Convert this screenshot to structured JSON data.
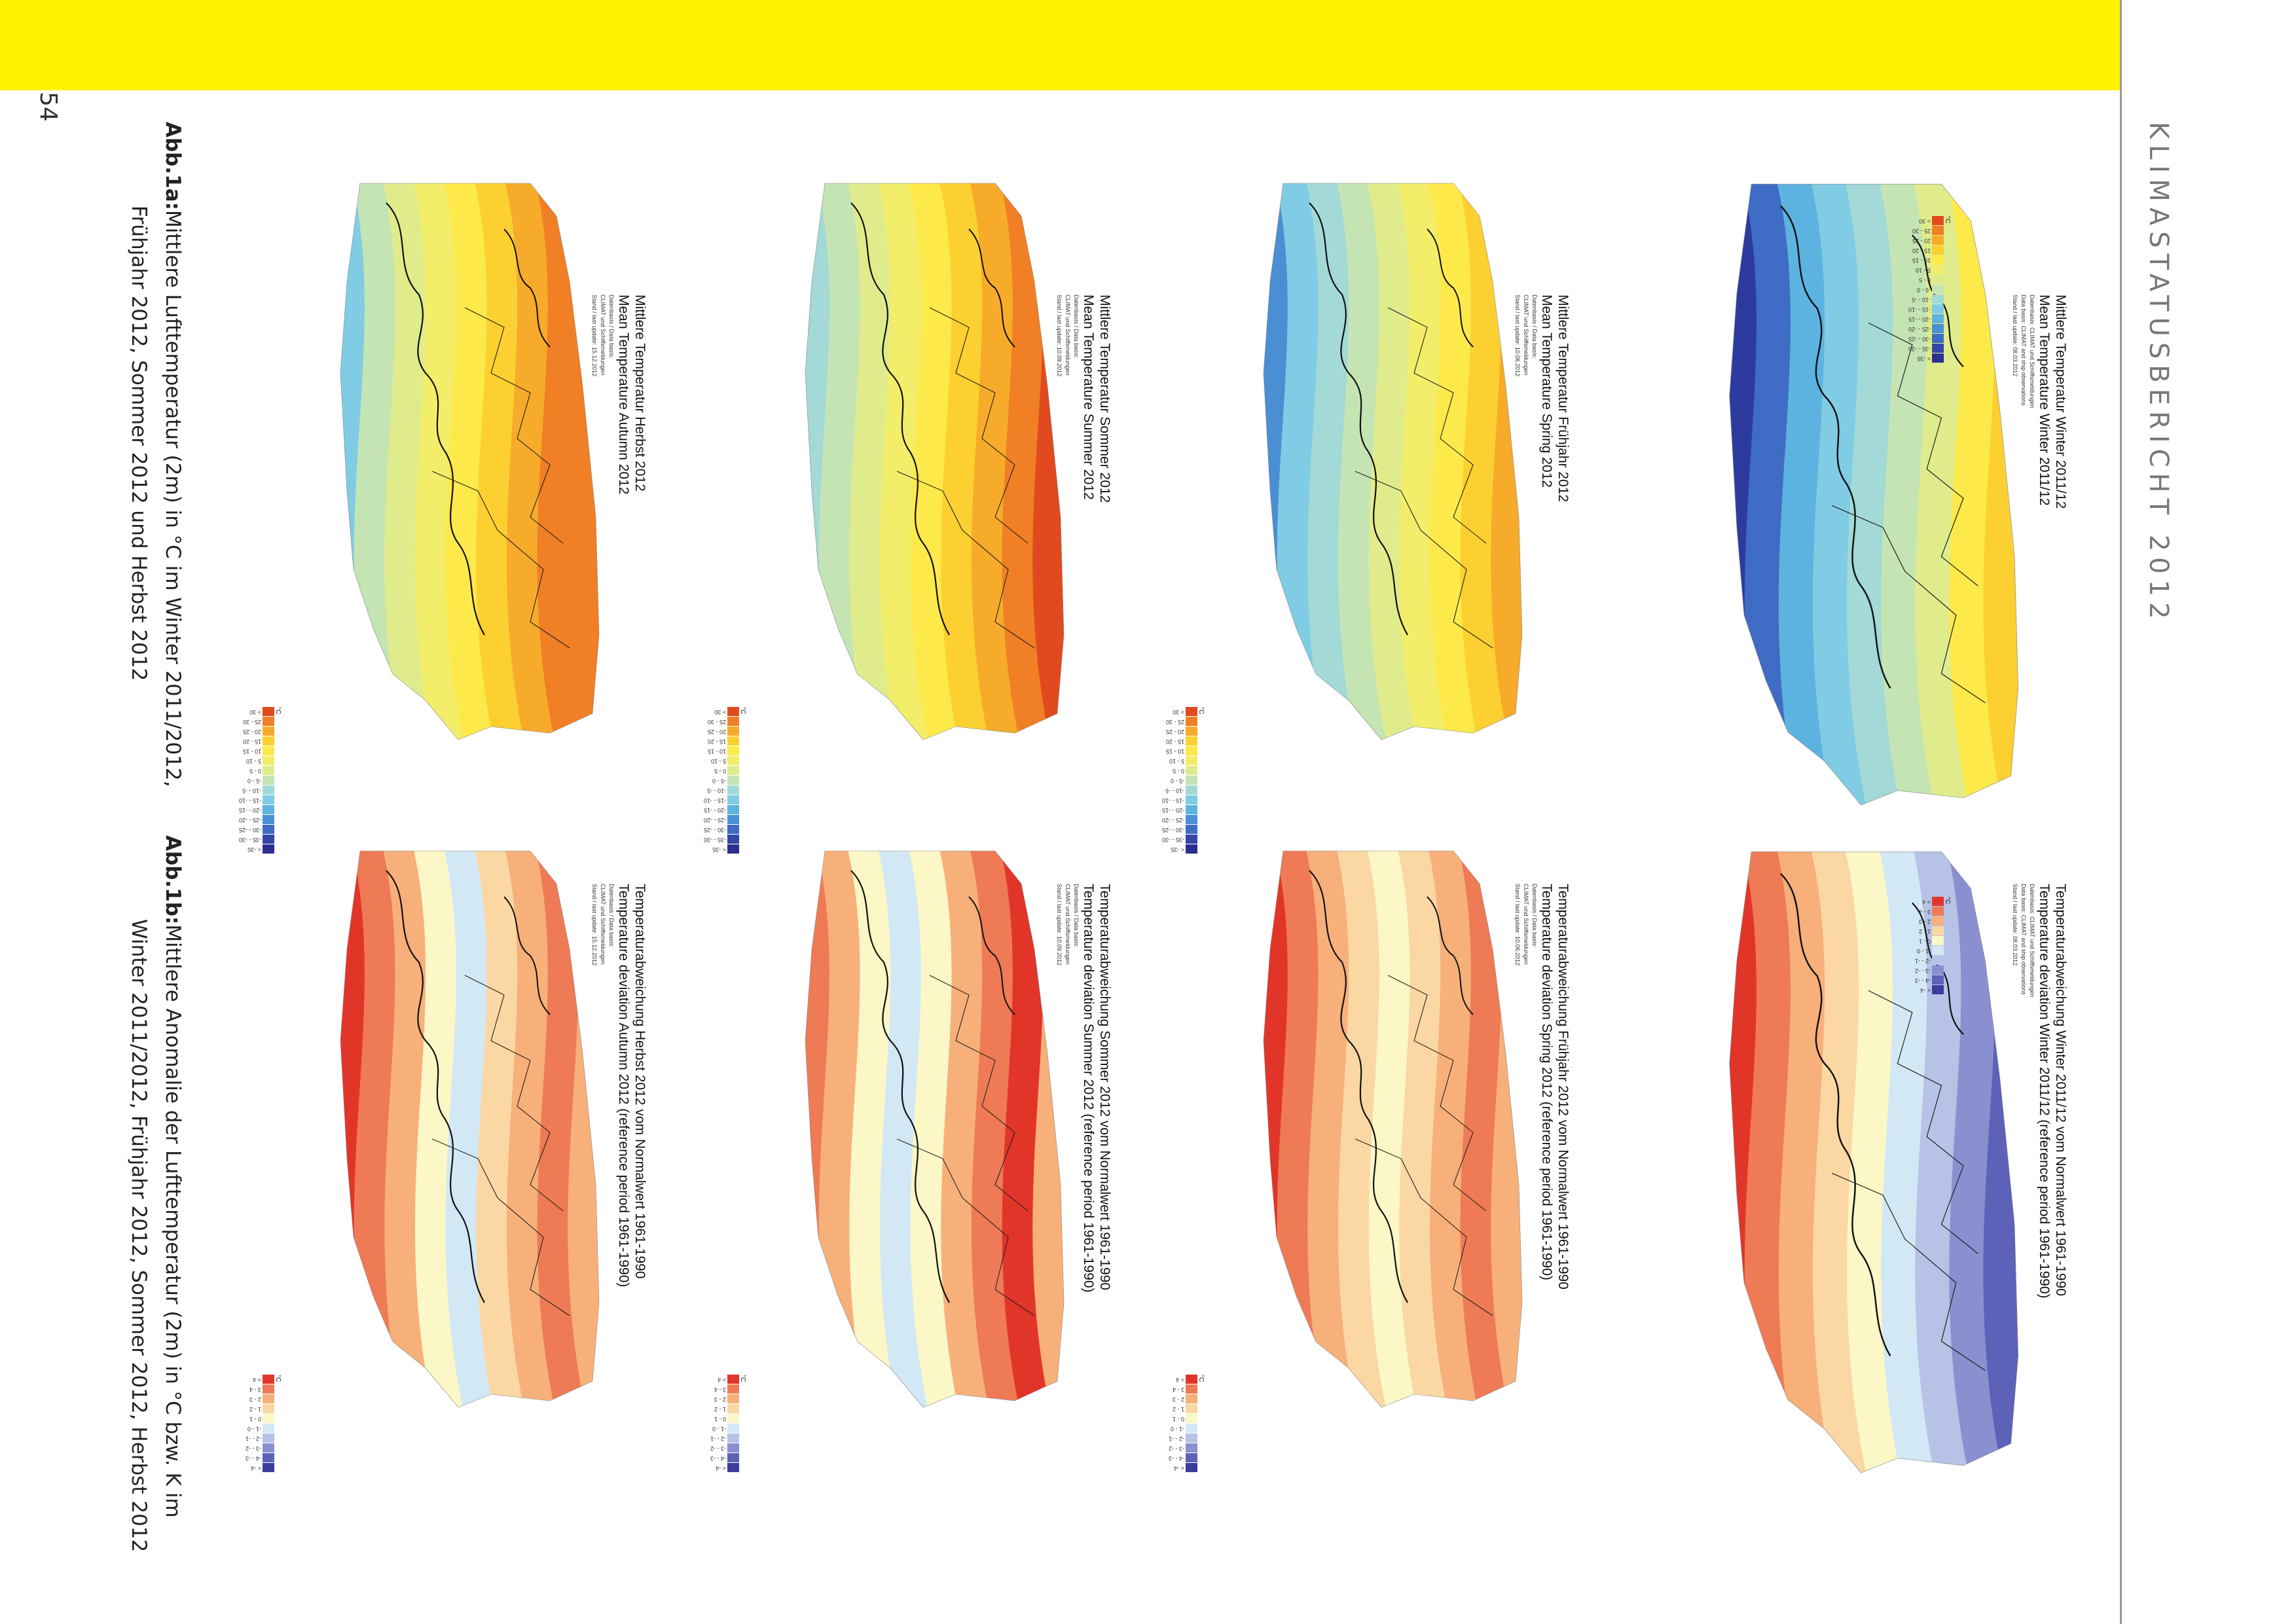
{
  "header": {
    "title": "KLIMASTATUSBERICHT 2012",
    "page_number": "54"
  },
  "captions": {
    "a": {
      "label": "Abb.1a:",
      "line1": "Mittlere Lufttemperatur (2m) in °C im Winter 2011/2012,",
      "line2": "Frühjahr 2012, Sommer 2012 und Herbst 2012"
    },
    "b": {
      "label": "Abb.1b:",
      "line1": "Mittlere Anomalie der Lufttemperatur (2m) in °C bzw. K im",
      "line2": "Winter 2011/2012, Frühjahr 2012, Sommer 2012, Herbst 2012"
    }
  },
  "maps": {
    "abs": [
      {
        "title_de": "Mittlere Temperatur Winter 2011/12",
        "title_en": "Mean Temperature Winter 2011/12",
        "meta1": "Datenbasis:  CLIMAT und Schiffsmeldungen",
        "meta2": "Data basis:  CLIMAT and ship observations",
        "meta3": "Stand / last update:  08.03.2012"
      },
      {
        "title_de": "Mittlere Temperatur Frühjahr 2012",
        "title_en": "Mean Temperature Spring 2012",
        "meta1": "Datenbasis / Data basis:",
        "meta2": "CLIMAT und Schiffsmeldungen",
        "meta3": "Stand / last update:  10.06.2012"
      },
      {
        "title_de": "Mittlere Temperatur Sommer 2012",
        "title_en": "Mean Temperature Summer 2012",
        "meta1": "Datenbasis / Data basis:",
        "meta2": "CLIMAT und Schiffsmeldungen",
        "meta3": "Stand / last update:  10.09.2012"
      },
      {
        "title_de": "Mittlere Temperatur Herbst 2012",
        "title_en": "Mean Temperature Autumn 2012",
        "meta1": "Datenbasis / Data basis:",
        "meta2": "CLIMAT und Schiffsmeldungen",
        "meta3": "Stand / last update:  15.12.2012"
      }
    ],
    "anom": [
      {
        "title_de": "Temperaturabweichung Winter 2011/12 vom Normalwert 1961-1990",
        "title_en": "Temperature deviation Winter 2011/12 (reference period 1961-1990)",
        "meta1": "Datenbasis:  CLIMAT und Schiffsmeldungen",
        "meta2": "Data basis:  CLIMAT and ship observations",
        "meta3": "Stand / last update:  08.03.2012"
      },
      {
        "title_de": "Temperaturabweichung Frühjahr 2012 vom Normalwert 1961-1990",
        "title_en": "Temperature deviation Spring 2012 (reference period 1961-1990)",
        "meta1": "Datenbasis / Data basis:",
        "meta2": "CLIMAT und Schiffsmeldungen",
        "meta3": "Stand / last update:  10.06.2012"
      },
      {
        "title_de": "Temperaturabweichung Sommer 2012 vom Normalwert 1961-1990",
        "title_en": "Temperature deviation Summer 2012 (reference period 1961-1990)",
        "meta1": "Datenbasis / Data basis:",
        "meta2": "CLIMAT und Schiffsmeldungen",
        "meta3": "Stand / last update:  10.09.2012"
      },
      {
        "title_de": "Temperaturabweichung Herbst 2012 vom Normalwert 1961-1990",
        "title_en": "Temperature deviation Autumn 2012 (reference period 1961-1990)",
        "meta1": "Datenbasis / Data basis:",
        "meta2": "CLIMAT und Schiffsmeldungen",
        "meta3": "Stand / last update:  15.12.2012"
      }
    ]
  },
  "legends": {
    "unit": "°C",
    "abs": {
      "labels": [
        "< -35",
        "-35 - -30",
        "-30 - -25",
        "-25 - -20",
        "-20 - -15",
        "-15 - -10",
        "-10 - -5",
        "-5 - 0",
        "0 - 5",
        "5 - 10",
        "10 - 15",
        "15 - 20",
        "20 - 25",
        "25 - 30",
        "> 30"
      ],
      "colors": [
        "#2b2f8f",
        "#3646a8",
        "#3f6cc4",
        "#4a8fd4",
        "#5db3e0",
        "#80cce4",
        "#a3d9d6",
        "#c4e4b4",
        "#e0ec8c",
        "#f2ee6a",
        "#fde94a",
        "#fcd030",
        "#f7ab2a",
        "#f07f25",
        "#e14a1f"
      ]
    },
    "anom": {
      "labels": [
        "< -4",
        "-4 - -3",
        "-3 - -2",
        "-2 - -1",
        "-1 - 0",
        "0 - 1",
        "1 - 2",
        "2 - 3",
        "3 - 4",
        "> 4"
      ],
      "colors": [
        "#3b3c9b",
        "#5b62b8",
        "#8a8fd0",
        "#b6c2e6",
        "#d3e8f5",
        "#fbf7c6",
        "#fbd7a3",
        "#f7b07a",
        "#ee7b55",
        "#e2352a"
      ]
    }
  }
}
